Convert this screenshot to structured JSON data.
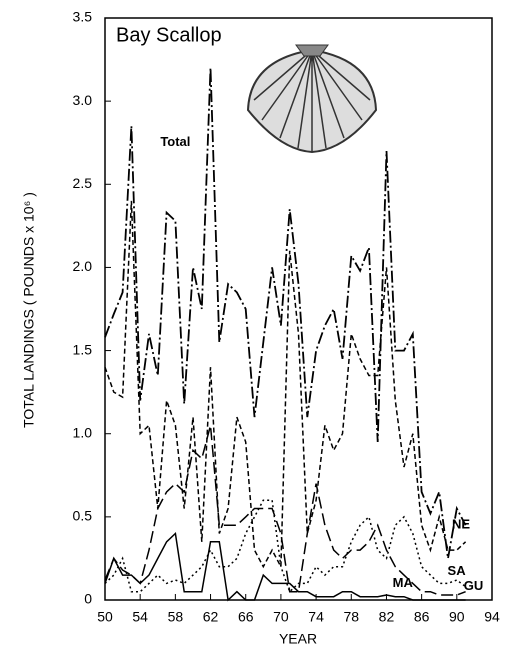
{
  "chart_data": {
    "type": "line",
    "title": "Bay Scallop",
    "x_label": "YEAR",
    "y_label": "TOTAL LANDINGS ( POUNDS x 10⁶ )",
    "x": [
      50,
      51,
      52,
      53,
      54,
      55,
      56,
      57,
      58,
      59,
      60,
      61,
      62,
      63,
      64,
      65,
      66,
      67,
      68,
      69,
      70,
      71,
      72,
      73,
      74,
      75,
      76,
      77,
      78,
      79,
      80,
      81,
      82,
      83,
      84,
      85,
      86,
      87,
      88,
      89,
      90,
      91
    ],
    "series": [
      {
        "name": "Total",
        "color": "#000000",
        "values": [
          1.58,
          1.72,
          1.85,
          2.85,
          1.2,
          1.6,
          1.35,
          2.33,
          2.28,
          1.18,
          2.0,
          1.75,
          3.2,
          1.55,
          1.9,
          1.85,
          1.75,
          1.1,
          1.55,
          2.0,
          1.65,
          2.35,
          1.9,
          1.1,
          1.5,
          1.65,
          1.75,
          1.45,
          2.07,
          1.98,
          2.12,
          0.95,
          2.7,
          1.5,
          1.5,
          1.6,
          0.65,
          0.52,
          0.65,
          0.25,
          0.55,
          0.45
        ]
      },
      {
        "name": "NE",
        "color": "#000000",
        "values": [
          1.4,
          1.25,
          1.22,
          2.4,
          1.0,
          1.05,
          0.55,
          1.2,
          1.05,
          0.55,
          1.1,
          0.35,
          1.4,
          0.4,
          0.55,
          1.1,
          0.95,
          0.3,
          0.2,
          0.3,
          0.2,
          2.1,
          1.6,
          0.4,
          0.6,
          1.05,
          0.9,
          1.0,
          1.6,
          1.45,
          1.35,
          1.35,
          2.0,
          1.2,
          0.8,
          1.0,
          0.45,
          0.3,
          0.5,
          0.3,
          0.3,
          0.35
        ]
      },
      {
        "name": "MA",
        "color": "#000000",
        "values": [
          0.12,
          0.25,
          0.18,
          0.15,
          0.1,
          0.3,
          0.55,
          0.65,
          0.7,
          0.65,
          0.9,
          0.85,
          1.05,
          0.45,
          0.45,
          0.45,
          0.5,
          0.55,
          0.55,
          0.55,
          0.4,
          0.05,
          0.05,
          0.4,
          0.7,
          0.45,
          0.3,
          0.25,
          0.3,
          0.3,
          0.35,
          0.45,
          0.3,
          0.2,
          0.15,
          0.1,
          0.05,
          0.05,
          0.03,
          0.03,
          0.03,
          0.05
        ]
      },
      {
        "name": "SA",
        "color": "#000000",
        "values": [
          0.1,
          0.15,
          0.25,
          0.05,
          0.05,
          0.1,
          0.15,
          0.1,
          0.12,
          0.1,
          0.15,
          0.2,
          0.3,
          0.2,
          0.2,
          0.25,
          0.4,
          0.5,
          0.6,
          0.6,
          0.2,
          0.05,
          0.1,
          0.1,
          0.2,
          0.15,
          0.2,
          0.2,
          0.35,
          0.45,
          0.5,
          0.3,
          0.25,
          0.45,
          0.5,
          0.4,
          0.2,
          0.15,
          0.1,
          0.1,
          0.12,
          0.08
        ]
      },
      {
        "name": "GU",
        "color": "#000000",
        "values": [
          0.1,
          0.25,
          0.15,
          0.15,
          0.1,
          0.15,
          0.25,
          0.35,
          0.4,
          0.05,
          0.05,
          0.05,
          0.35,
          0.35,
          0,
          0.05,
          0,
          0,
          0.15,
          0.1,
          0.1,
          0.1,
          0.05,
          0.05,
          0.02,
          0.02,
          0.02,
          0.05,
          0.05,
          0.02,
          0.02,
          0.02,
          0.03,
          0.02,
          0.02,
          0,
          0,
          0,
          0,
          0,
          0,
          0
        ]
      }
    ],
    "xlim": [
      50,
      94
    ],
    "xticks": [
      50,
      54,
      58,
      62,
      66,
      70,
      74,
      78,
      82,
      86,
      90,
      94
    ],
    "ylim": [
      0,
      3.5
    ],
    "yticks": [
      0,
      0.5,
      {
        "value": 1,
        "label": "1.0"
      },
      1.5,
      {
        "value": 2,
        "label": "2.0"
      },
      2.5,
      {
        "value": 3,
        "label": "3.0"
      },
      3.5
    ]
  }
}
